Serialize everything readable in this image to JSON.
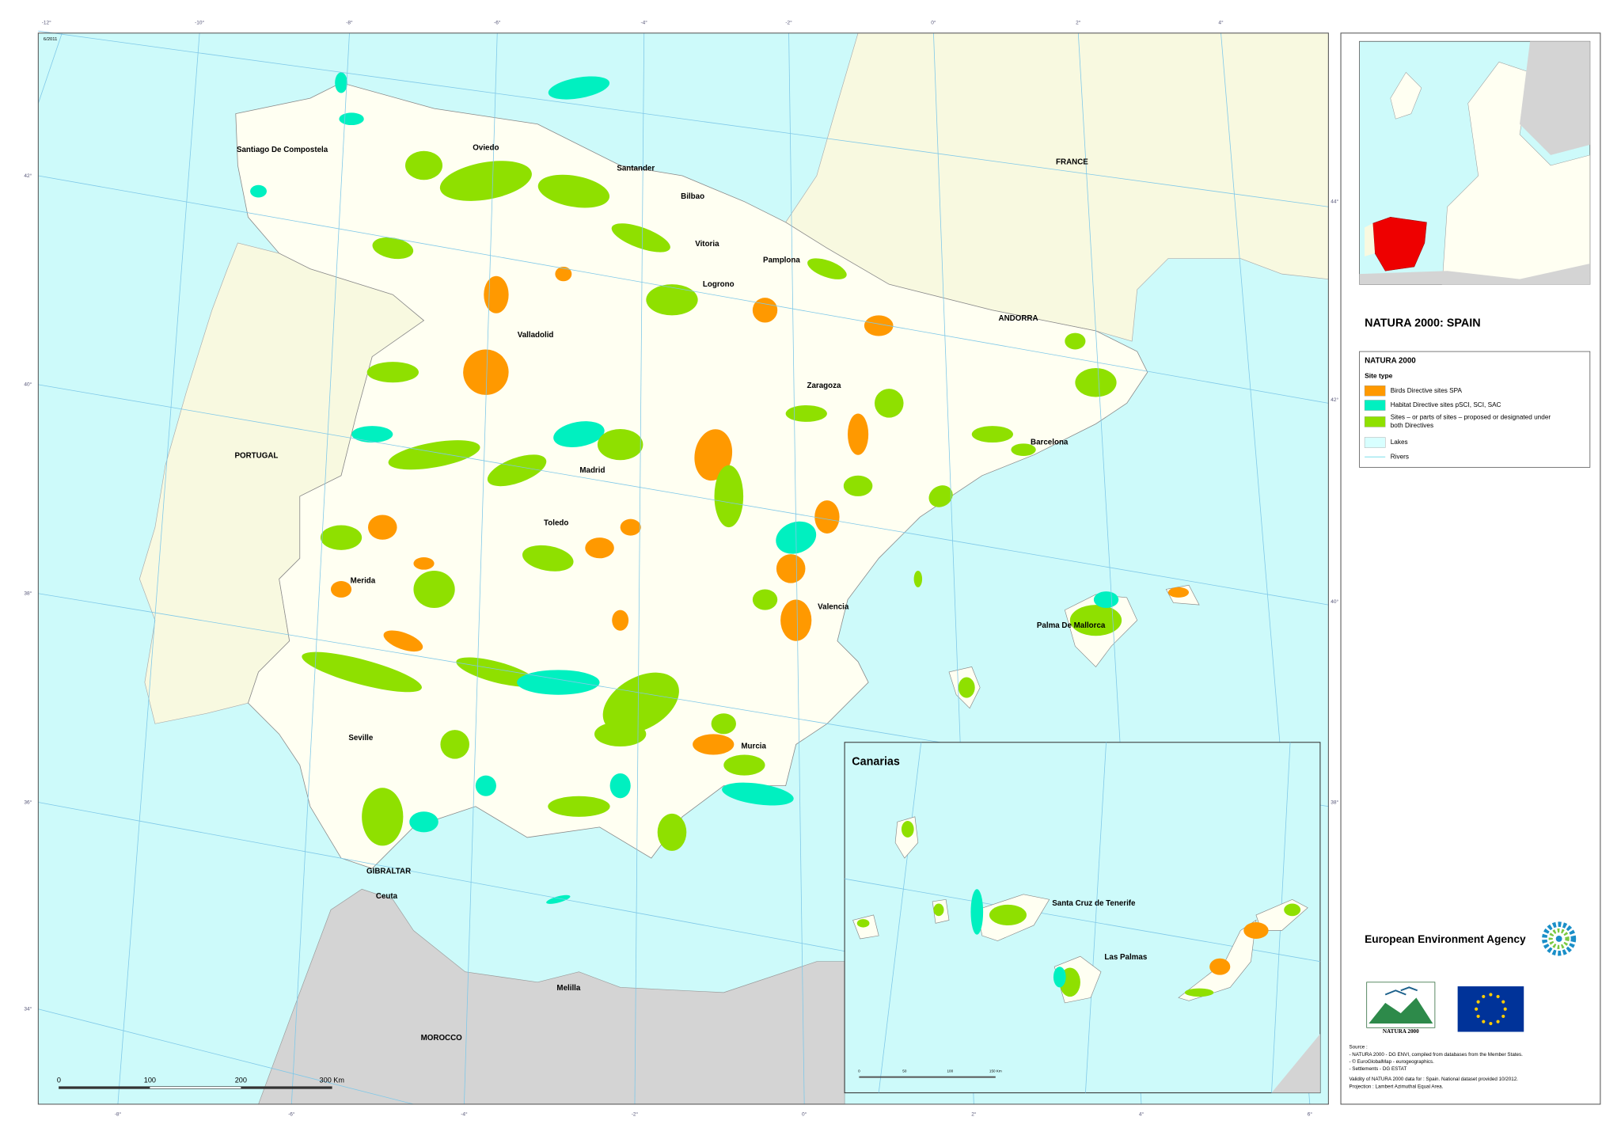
{
  "header": {
    "date": "6/2011",
    "title": "NATURA 2000: SPAIN"
  },
  "map": {
    "places": [
      "Santiago De Compostela",
      "Oviedo",
      "Santander",
      "Bilbao",
      "FRANCE",
      "Vitoria",
      "Pamplona",
      "Logrono",
      "ANDORRA",
      "Valladolid",
      "Zaragoza",
      "PORTUGAL",
      "Barcelona",
      "Madrid",
      "Toledo",
      "Merida",
      "Valencia",
      "Palma De Mallorca",
      "Seville",
      "Murcia",
      "GIBRALTAR",
      "Ceuta",
      "Melilla",
      "MOROCCO"
    ],
    "graticule": {
      "top": [
        "-12°",
        "-10°",
        "-8°",
        "-6°",
        "-4°",
        "-2°",
        "0°",
        "2°",
        "4°"
      ],
      "bottom": [
        "-8°",
        "-6°",
        "-4°",
        "-2°",
        "0°",
        "2°",
        "4°",
        "6°"
      ],
      "left": [
        "42°",
        "40°",
        "38°",
        "36°",
        "34°"
      ],
      "right": [
        "44°",
        "42°",
        "40°",
        "38°"
      ]
    },
    "scale_bar": [
      "0",
      "100",
      "200",
      "300 Km"
    ],
    "inset": {
      "title": "Canarias",
      "places": [
        "Santa Cruz de Tenerife",
        "Las Palmas"
      ],
      "scale_bar": [
        "0",
        "50",
        "100",
        "150 Km"
      ]
    }
  },
  "legend": {
    "title": "NATURA 2000",
    "subtitle": "Site type",
    "items": [
      {
        "label": "Birds Directive sites SPA",
        "color": "#ff9900"
      },
      {
        "label": "Habitat Directive sites pSCI, SCI, SAC",
        "color": "#00f0c0"
      },
      {
        "label": "Sites – or parts of sites – proposed or designated under both Directives",
        "color": "#8fe000"
      },
      {
        "label": "Lakes",
        "color": "#d8ffff"
      },
      {
        "label": "Rivers",
        "color": "#9fe8f0"
      }
    ]
  },
  "agency": "European Environment Agency",
  "logo_text": "NATURA 2000",
  "source": [
    "Source :",
    "- NATURA 2000 - DG ENVI, compiled from databases from the Member States.",
    "- © EuroGlobalMap - eurogeographics.",
    "- Settlements - DG ESTAT",
    "Validity of NATURA 2000 data for : Spain.  National dataset provided 10/2012.",
    "Projection : Lambert Azimuthal Equal Area."
  ]
}
